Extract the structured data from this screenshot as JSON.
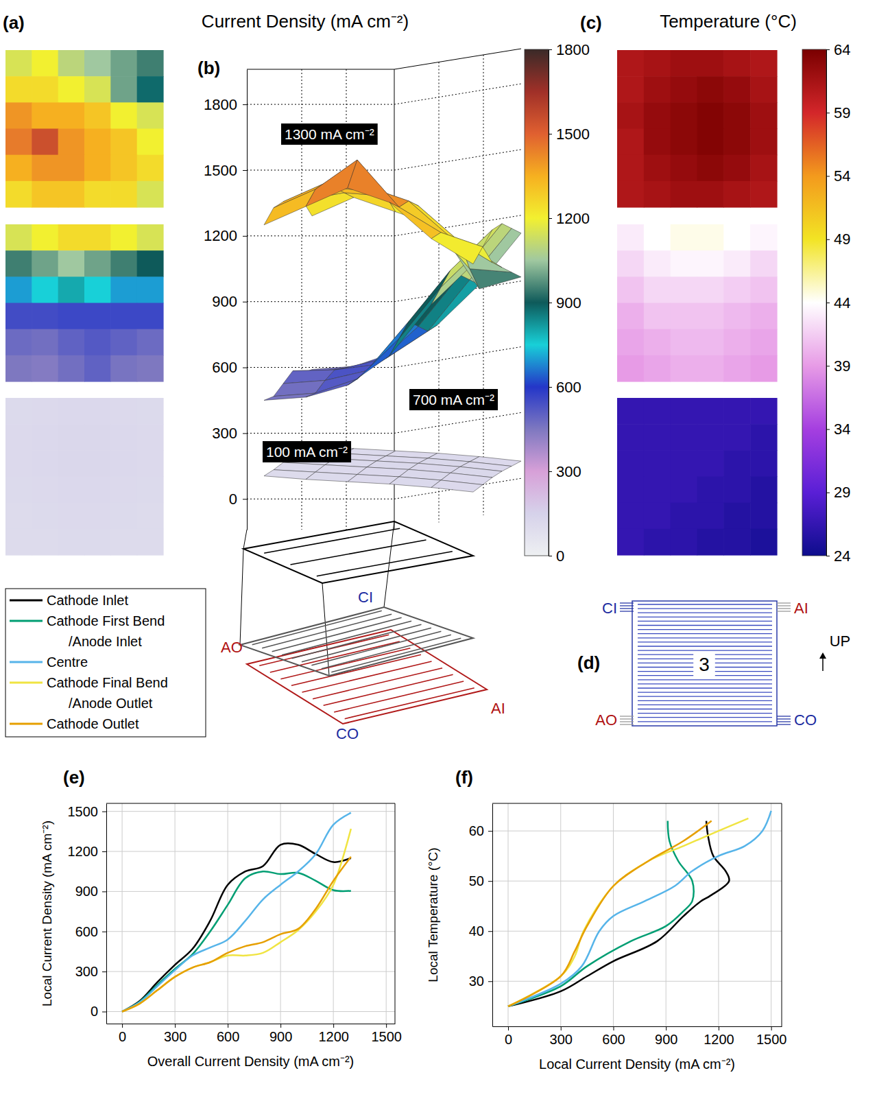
{
  "chart_data": [
    {
      "type": "surface",
      "title": "Current Density (mA cm⁻²)",
      "panel_labels": [
        "(a)",
        "(b)"
      ],
      "zlim": [
        -140,
        1960
      ],
      "zticks": [
        0,
        300,
        600,
        900,
        1200,
        1500,
        1800
      ],
      "maps": [
        {
          "label": "1300 mA cm⁻²",
          "cells": [
            [
              1150,
              1200,
              1100,
              1050,
              1000,
              950
            ],
            [
              1250,
              1250,
              1200,
              1150,
              1000,
              880
            ],
            [
              1400,
              1350,
              1350,
              1300,
              1200,
              1150
            ],
            [
              1450,
              1550,
              1400,
              1350,
              1300,
              1200
            ],
            [
              1350,
              1400,
              1400,
              1350,
              1300,
              1250
            ],
            [
              1250,
              1300,
              1300,
              1250,
              1250,
              1150
            ]
          ]
        },
        {
          "label": "700 mA cm⁻²",
          "cells": [
            [
              1150,
              1200,
              1250,
              1250,
              1200,
              1150
            ],
            [
              950,
              1000,
              1050,
              1000,
              950,
              900
            ],
            [
              700,
              750,
              800,
              750,
              700,
              700
            ],
            [
              550,
              550,
              560,
              560,
              560,
              560
            ],
            [
              480,
              470,
              500,
              520,
              500,
              480
            ],
            [
              450,
              440,
              470,
              500,
              460,
              450
            ]
          ]
        },
        {
          "label": "100 mA cm⁻²",
          "cells": [
            [
              110,
              115,
              120,
              120,
              115,
              110
            ],
            [
              115,
              120,
              125,
              125,
              120,
              115
            ],
            [
              115,
              120,
              125,
              125,
              120,
              115
            ],
            [
              110,
              115,
              120,
              120,
              115,
              110
            ],
            [
              105,
              110,
              115,
              115,
              110,
              105
            ],
            [
              105,
              105,
              110,
              110,
              105,
              105
            ]
          ]
        }
      ],
      "colorbar": {
        "range": [
          0,
          1800
        ],
        "ticks": [
          0,
          300,
          600,
          900,
          1200,
          1500,
          1800
        ],
        "colors": [
          "#eef0f2",
          "#d6d2ea",
          "#d7a0d8",
          "#7e78c0",
          "#2436c8",
          "#18d0d8",
          "#0e5a5a",
          "#a0c8a0",
          "#f2f030",
          "#f6b020",
          "#e06030",
          "#a03028",
          "#3a2a28"
        ]
      },
      "flow_labels": {
        "cathode_inlet": "CI",
        "anode_outlet": "AO",
        "anode_inlet": "AI",
        "cathode_outlet": "CO"
      }
    },
    {
      "type": "heatmap",
      "title": "Temperature (°C)",
      "panel_label": "(c)",
      "maps": [
        {
          "cells": [
            [
              61,
              61.5,
              62,
              62,
              61.5,
              61
            ],
            [
              61,
              62,
              62.5,
              63,
              62.5,
              61.5
            ],
            [
              61.5,
              62.5,
              63,
              63.5,
              63,
              62
            ],
            [
              61,
              62.5,
              63,
              63.5,
              63,
              62
            ],
            [
              61,
              62,
              62.5,
              63,
              62.5,
              61.5
            ],
            [
              61,
              61.5,
              62,
              62,
              61.5,
              61
            ]
          ]
        },
        {
          "cells": [
            [
              43,
              44,
              44.5,
              44.5,
              44,
              43.5
            ],
            [
              42,
              43,
              43.5,
              43.5,
              43,
              42
            ],
            [
              41,
              42,
              42,
              42,
              41.5,
              41
            ],
            [
              40,
              41,
              41,
              41,
              40.5,
              40
            ],
            [
              39.5,
              40,
              40.5,
              40.5,
              40,
              39.5
            ],
            [
              39,
              39.5,
              40,
              40,
              39.5,
              39
            ]
          ]
        },
        {
          "cells": [
            [
              26.5,
              26.5,
              26.5,
              26.5,
              26.5,
              26.5
            ],
            [
              26.5,
              26.5,
              26.5,
              26.5,
              26.5,
              26
            ],
            [
              26.5,
              26.5,
              26.5,
              26.5,
              26,
              26
            ],
            [
              26.5,
              26.5,
              26.5,
              26,
              26,
              25.5
            ],
            [
              26.5,
              26.5,
              26,
              26,
              25.5,
              25.5
            ],
            [
              26.5,
              26,
              26,
              25.5,
              25.5,
              25
            ]
          ]
        }
      ],
      "colorbar": {
        "range": [
          24,
          64
        ],
        "ticks": [
          24,
          29,
          34,
          39,
          44,
          49,
          54,
          59,
          64
        ],
        "colors": [
          "#0d0d8c",
          "#5a1fd6",
          "#a53fe0",
          "#e79be6",
          "#ffffff",
          "#f2e424",
          "#f39a1d",
          "#d3262a",
          "#7a0000"
        ]
      }
    },
    {
      "type": "diagram",
      "panel_label": "(d)",
      "flow_labels": {
        "cathode_inlet": "CI",
        "anode_inlet": "AI",
        "anode_outlet": "AO",
        "cathode_outlet": "CO"
      },
      "cell_label": "3",
      "direction_label": "UP"
    },
    {
      "type": "line",
      "panel_label": "(e)",
      "x_label": "Overall Current Density (mA cm⁻²)",
      "y_label": "Local Current Density (mA cm⁻²)",
      "x": [
        0,
        100,
        200,
        300,
        400,
        500,
        600,
        700,
        800,
        900,
        1000,
        1100,
        1200,
        1300
      ],
      "series": [
        {
          "name": "Cathode Inlet",
          "color": "#000000",
          "values": [
            0,
            80,
            220,
            350,
            470,
            680,
            950,
            1050,
            1090,
            1250,
            1250,
            1180,
            1120,
            1150
          ]
        },
        {
          "name": "Cathode First Bend /Anode Inlet",
          "color": "#009e73",
          "values": [
            0,
            75,
            200,
            320,
            430,
            600,
            800,
            1000,
            1050,
            1030,
            1040,
            980,
            910,
            905
          ]
        },
        {
          "name": "Centre",
          "color": "#56b4e9",
          "values": [
            0,
            70,
            190,
            310,
            420,
            480,
            540,
            680,
            840,
            950,
            1050,
            1180,
            1400,
            1490
          ]
        },
        {
          "name": "Cathode Final Bend /Anode Outlet",
          "color": "#f0e442",
          "values": [
            0,
            60,
            160,
            260,
            330,
            370,
            420,
            420,
            440,
            520,
            610,
            750,
            950,
            1370
          ]
        },
        {
          "name": "Cathode Outlet",
          "color": "#e69f00",
          "values": [
            0,
            60,
            160,
            260,
            330,
            370,
            440,
            490,
            520,
            580,
            620,
            770,
            980,
            1160
          ]
        }
      ],
      "xlim": [
        -90,
        1550
      ],
      "ylim": [
        -90,
        1560
      ],
      "xticks": [
        0,
        300,
        600,
        900,
        1200,
        1500
      ],
      "yticks": [
        0,
        300,
        600,
        900,
        1200,
        1500
      ],
      "grid": true,
      "legend": "left"
    },
    {
      "type": "line",
      "panel_label": "(f)",
      "x_label": "Local Current Density (mA cm⁻²)",
      "y_label": "Local Temperature (°C)",
      "series": [
        {
          "color": "#000000",
          "x": [
            0,
            300,
            450,
            600,
            850,
            1000,
            1100,
            1150,
            1260,
            1240,
            1170,
            1140,
            1130
          ],
          "values": [
            25,
            28,
            31,
            34,
            38,
            43,
            46,
            47,
            50,
            52,
            55,
            59,
            62
          ]
        },
        {
          "color": "#009e73",
          "x": [
            0,
            300,
            450,
            700,
            900,
            1000,
            1050,
            1050,
            970,
            920,
            910
          ],
          "values": [
            25,
            29,
            33,
            38,
            41,
            44,
            46,
            50,
            54,
            58,
            62
          ]
        },
        {
          "color": "#56b4e9",
          "x": [
            0,
            300,
            420,
            520,
            600,
            780,
            950,
            1050,
            1200,
            1350,
            1450,
            1500
          ],
          "values": [
            25,
            29.5,
            33,
            40,
            43,
            46,
            49,
            52,
            55,
            57,
            60,
            64
          ]
        },
        {
          "color": "#f0e442",
          "x": [
            0,
            300,
            380,
            430,
            600,
            800,
            1000,
            1200,
            1370
          ],
          "values": [
            25,
            31,
            35,
            40,
            49,
            54,
            57,
            60,
            62.5
          ]
        },
        {
          "color": "#e69f00",
          "x": [
            0,
            300,
            380,
            450,
            600,
            800,
            1000,
            1160
          ],
          "values": [
            25,
            31,
            36,
            41,
            49,
            54,
            58,
            62
          ]
        }
      ],
      "xlim": [
        -90,
        1560
      ],
      "ylim": [
        21,
        65.5
      ],
      "xticks": [
        0,
        300,
        600,
        900,
        1200,
        1500
      ],
      "yticks": [
        30,
        40,
        50,
        60
      ],
      "grid": true
    }
  ]
}
